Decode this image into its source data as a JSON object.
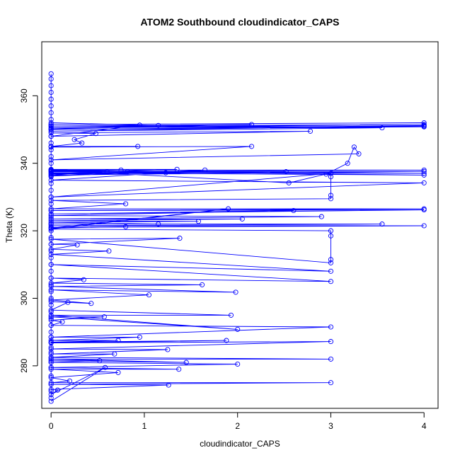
{
  "chart_data": {
    "type": "line",
    "title": "ATOM2 Southbound cloudindicator_CAPS",
    "xlabel": "cloudindicator_CAPS",
    "ylabel": "Theta (K)",
    "xlim": [
      -0.1,
      4.15
    ],
    "ylim": [
      267.4,
      376.0
    ],
    "xticks": [
      0,
      1,
      2,
      3,
      4
    ],
    "yticks": [
      280,
      300,
      320,
      340,
      360
    ],
    "grid": false,
    "legend": "none",
    "colors": {
      "series": "#0000ff",
      "axis": "#000000"
    },
    "series": [
      {
        "values": [
          [
            0,
            270.5
          ],
          [
            0,
            272.5
          ],
          [
            0,
            274.5
          ],
          [
            0,
            277.0
          ],
          [
            0,
            279.5
          ],
          [
            0,
            281.0
          ],
          [
            0,
            282.5
          ],
          [
            0,
            284.0
          ],
          [
            0,
            285.5
          ],
          [
            0,
            287.0
          ],
          [
            0,
            288.5
          ],
          [
            0,
            290.0
          ],
          [
            0,
            292.0
          ],
          [
            0,
            294.0
          ],
          [
            0,
            296.0
          ],
          [
            0,
            298.0
          ],
          [
            0,
            300.0
          ],
          [
            0,
            302.0
          ],
          [
            0,
            304.0
          ],
          [
            0,
            306.0
          ],
          [
            0,
            308.0
          ],
          [
            0,
            310.0
          ],
          [
            0,
            312.0
          ],
          [
            0,
            314.0
          ],
          [
            0,
            316.0
          ],
          [
            0,
            318.0
          ],
          [
            0,
            320.0
          ],
          [
            0,
            322.0
          ],
          [
            0,
            324.0
          ],
          [
            0,
            326.0
          ],
          [
            0,
            328.0
          ],
          [
            0,
            330.0
          ],
          [
            0,
            332.0
          ],
          [
            0,
            334.0
          ],
          [
            0,
            336.0
          ],
          [
            0,
            338.0
          ],
          [
            0,
            340.0
          ],
          [
            0,
            342.0
          ],
          [
            0,
            344.0
          ],
          [
            0,
            346.0
          ],
          [
            0,
            348.0
          ],
          [
            0,
            350.0
          ],
          [
            0,
            351.5
          ],
          [
            0,
            353.0
          ],
          [
            0,
            355.0
          ],
          [
            0,
            357.0
          ],
          [
            0,
            359.0
          ],
          [
            0,
            361.0
          ],
          [
            0,
            363.0
          ],
          [
            0,
            365.0
          ],
          [
            0,
            366.5
          ],
          [
            0,
            351.5
          ],
          [
            4,
            352.0
          ],
          [
            4,
            351.0
          ],
          [
            0,
            350.5
          ],
          [
            4,
            351.5
          ],
          [
            0,
            351.0
          ],
          [
            4,
            350.8
          ],
          [
            0,
            350.0
          ],
          [
            4,
            351.2
          ],
          [
            0,
            349.5
          ],
          [
            3.55,
            350.5
          ],
          [
            0,
            351.0
          ],
          [
            2.15,
            351.5
          ],
          [
            0,
            350.2
          ],
          [
            1.15,
            351.2
          ],
          [
            0,
            352.0
          ],
          [
            0.95,
            351.3
          ],
          [
            0,
            348.0
          ],
          [
            2.78,
            349.5
          ],
          [
            0,
            349.0
          ],
          [
            0.48,
            348.8
          ],
          [
            0.25,
            347.0
          ],
          [
            0.33,
            346.0
          ],
          [
            0,
            345.0
          ],
          [
            0.93,
            345.0
          ],
          [
            0,
            344.8
          ],
          [
            2.15,
            345.0
          ],
          [
            0,
            341.0
          ],
          [
            3.3,
            342.8
          ],
          [
            3.25,
            344.8
          ],
          [
            3.18,
            340.0
          ],
          [
            2.95,
            336.8
          ],
          [
            2.55,
            334.2
          ],
          [
            0,
            338.0
          ],
          [
            4,
            338.0
          ],
          [
            0,
            337.5
          ],
          [
            4,
            337.0
          ],
          [
            0,
            337.8
          ],
          [
            4,
            336.5
          ],
          [
            0,
            337.2
          ],
          [
            4,
            337.6
          ],
          [
            0,
            336.5
          ],
          [
            0.6,
            337.5
          ],
          [
            0,
            338.2
          ],
          [
            1.35,
            338.2
          ],
          [
            0,
            337.0
          ],
          [
            1.23,
            337.2
          ],
          [
            0,
            336.8
          ],
          [
            2.52,
            337.5
          ],
          [
            0,
            337.6
          ],
          [
            0.75,
            338.0
          ],
          [
            0,
            338.0
          ],
          [
            0.82,
            337.5
          ],
          [
            0,
            336.2
          ],
          [
            1.65,
            338.0
          ],
          [
            0,
            335.0
          ],
          [
            4,
            334.2
          ],
          [
            0,
            330.0
          ],
          [
            3.0,
            337.0
          ],
          [
            3.0,
            336.0
          ],
          [
            3.0,
            330.5
          ],
          [
            3.0,
            329.5
          ],
          [
            0,
            329.0
          ],
          [
            0.8,
            328.0
          ],
          [
            0,
            326.5
          ],
          [
            4,
            326.5
          ],
          [
            0,
            326.0
          ],
          [
            4,
            326.2
          ],
          [
            0,
            325.0
          ],
          [
            2.6,
            326.0
          ],
          [
            0,
            324.5
          ],
          [
            2.9,
            324.2
          ],
          [
            0,
            323.5
          ],
          [
            2.05,
            323.5
          ],
          [
            0,
            323.0
          ],
          [
            1.58,
            322.8
          ],
          [
            0,
            322.5
          ],
          [
            1.15,
            322.0
          ],
          [
            0,
            322.0
          ],
          [
            3.55,
            322.0
          ],
          [
            0,
            321.5
          ],
          [
            4,
            321.5
          ],
          [
            0,
            321.0
          ],
          [
            0.8,
            321.2
          ],
          [
            0,
            320.8
          ],
          [
            1.9,
            326.5
          ],
          [
            0,
            320.5
          ],
          [
            3.0,
            320.0
          ],
          [
            3.0,
            318.5
          ],
          [
            3.0,
            311.5
          ],
          [
            3.0,
            310.5
          ],
          [
            0,
            317.5
          ],
          [
            1.38,
            317.8
          ],
          [
            0,
            316.0
          ],
          [
            0.28,
            315.8
          ],
          [
            0,
            314.5
          ],
          [
            0.62,
            314.0
          ],
          [
            0,
            313.0
          ],
          [
            3.0,
            308.0
          ],
          [
            0,
            310.0
          ],
          [
            3.0,
            305.0
          ],
          [
            0,
            306.0
          ],
          [
            0.35,
            305.5
          ],
          [
            0,
            304.5
          ],
          [
            1.62,
            304.0
          ],
          [
            0,
            303.5
          ],
          [
            1.98,
            301.8
          ],
          [
            0,
            302.5
          ],
          [
            1.05,
            301.0
          ],
          [
            0,
            299.5
          ],
          [
            0.43,
            298.5
          ],
          [
            0,
            299.0
          ],
          [
            0.18,
            298.8
          ],
          [
            0,
            296.5
          ],
          [
            1.93,
            295.0
          ],
          [
            0,
            295.0
          ],
          [
            2.0,
            290.8
          ],
          [
            0,
            294.5
          ],
          [
            0.57,
            294.5
          ],
          [
            0,
            293.5
          ],
          [
            0.12,
            293.0
          ],
          [
            0,
            292.0
          ],
          [
            3.0,
            291.5
          ],
          [
            0,
            288.5
          ],
          [
            0.95,
            288.5
          ],
          [
            0,
            287.5
          ],
          [
            0.72,
            287.5
          ],
          [
            0,
            287.0
          ],
          [
            1.88,
            287.5
          ],
          [
            0,
            286.8
          ],
          [
            3.0,
            287.2
          ],
          [
            0,
            285.0
          ],
          [
            1.25,
            284.8
          ],
          [
            0,
            283.5
          ],
          [
            0.68,
            283.5
          ],
          [
            0,
            282.5
          ],
          [
            3.0,
            282.0
          ],
          [
            0,
            282.0
          ],
          [
            1.45,
            281.0
          ],
          [
            0,
            281.5
          ],
          [
            0.52,
            281.5
          ],
          [
            0,
            281.0
          ],
          [
            2.0,
            280.5
          ],
          [
            0,
            279.5
          ],
          [
            1.37,
            279.0
          ],
          [
            0,
            279.0
          ],
          [
            0.72,
            278.0
          ],
          [
            0,
            276.5
          ],
          [
            0.2,
            275.5
          ],
          [
            0,
            275.0
          ],
          [
            3.0,
            275.0
          ],
          [
            0,
            274.5
          ],
          [
            1.26,
            274.3
          ],
          [
            0,
            273.0
          ],
          [
            0.07,
            272.8
          ],
          [
            0,
            271.5
          ],
          [
            0.58,
            279.5
          ],
          [
            0,
            269.5
          ]
        ]
      }
    ]
  }
}
